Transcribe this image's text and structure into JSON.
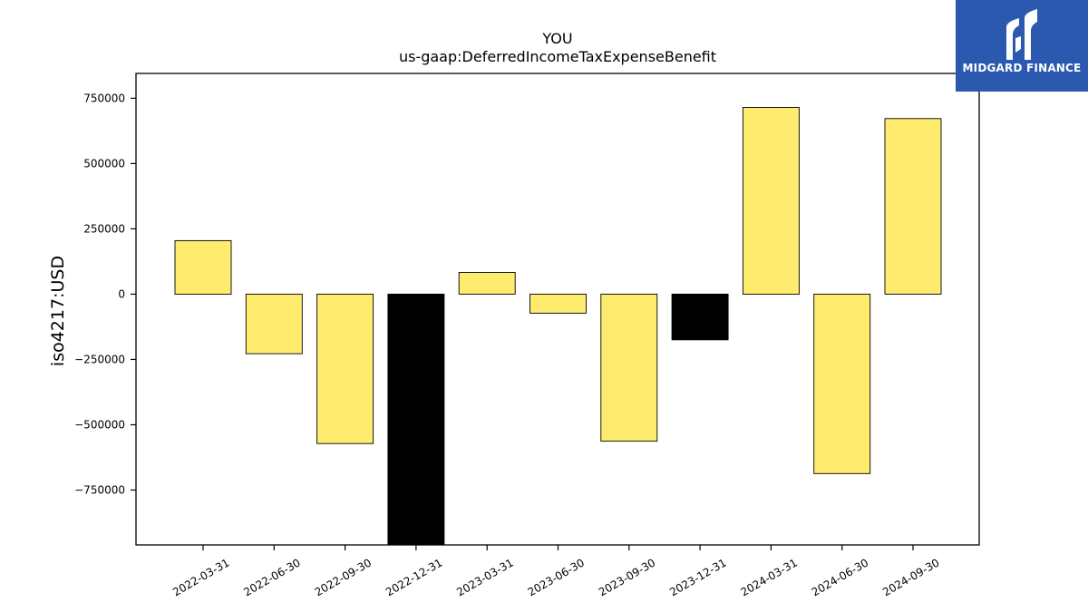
{
  "brand": {
    "name": "MIDGARD FINANCE",
    "background_color": "#2b59b0",
    "icon": "midgard-logo-icon"
  },
  "chart_data": {
    "type": "bar",
    "title": "YOU",
    "subtitle": "us-gaap:DeferredIncomeTaxExpenseBenefit",
    "xlabel": "",
    "ylabel": "iso4217:USD",
    "ylim": [
      -960000,
      845000
    ],
    "yticks": [
      750000,
      500000,
      250000,
      0,
      -250000,
      -500000,
      -750000
    ],
    "ytick_labels": [
      "750000",
      "500000",
      "250000",
      "0",
      "−250000",
      "−500000",
      "−750000"
    ],
    "grid": false,
    "categories": [
      "2022-03-31",
      "2022-06-30",
      "2022-09-30",
      "2022-12-31",
      "2023-03-31",
      "2023-06-30",
      "2023-09-30",
      "2023-12-31",
      "2024-03-31",
      "2024-06-30",
      "2024-09-30"
    ],
    "values": [
      205000,
      -228000,
      -572000,
      -960000,
      83000,
      -73000,
      -563000,
      -175000,
      715000,
      -687000,
      672000
    ],
    "colors": [
      "#ffec6e",
      "#ffec6e",
      "#ffec6e",
      "#000000",
      "#ffec6e",
      "#ffec6e",
      "#ffec6e",
      "#000000",
      "#ffec6e",
      "#ffec6e",
      "#ffec6e"
    ]
  }
}
